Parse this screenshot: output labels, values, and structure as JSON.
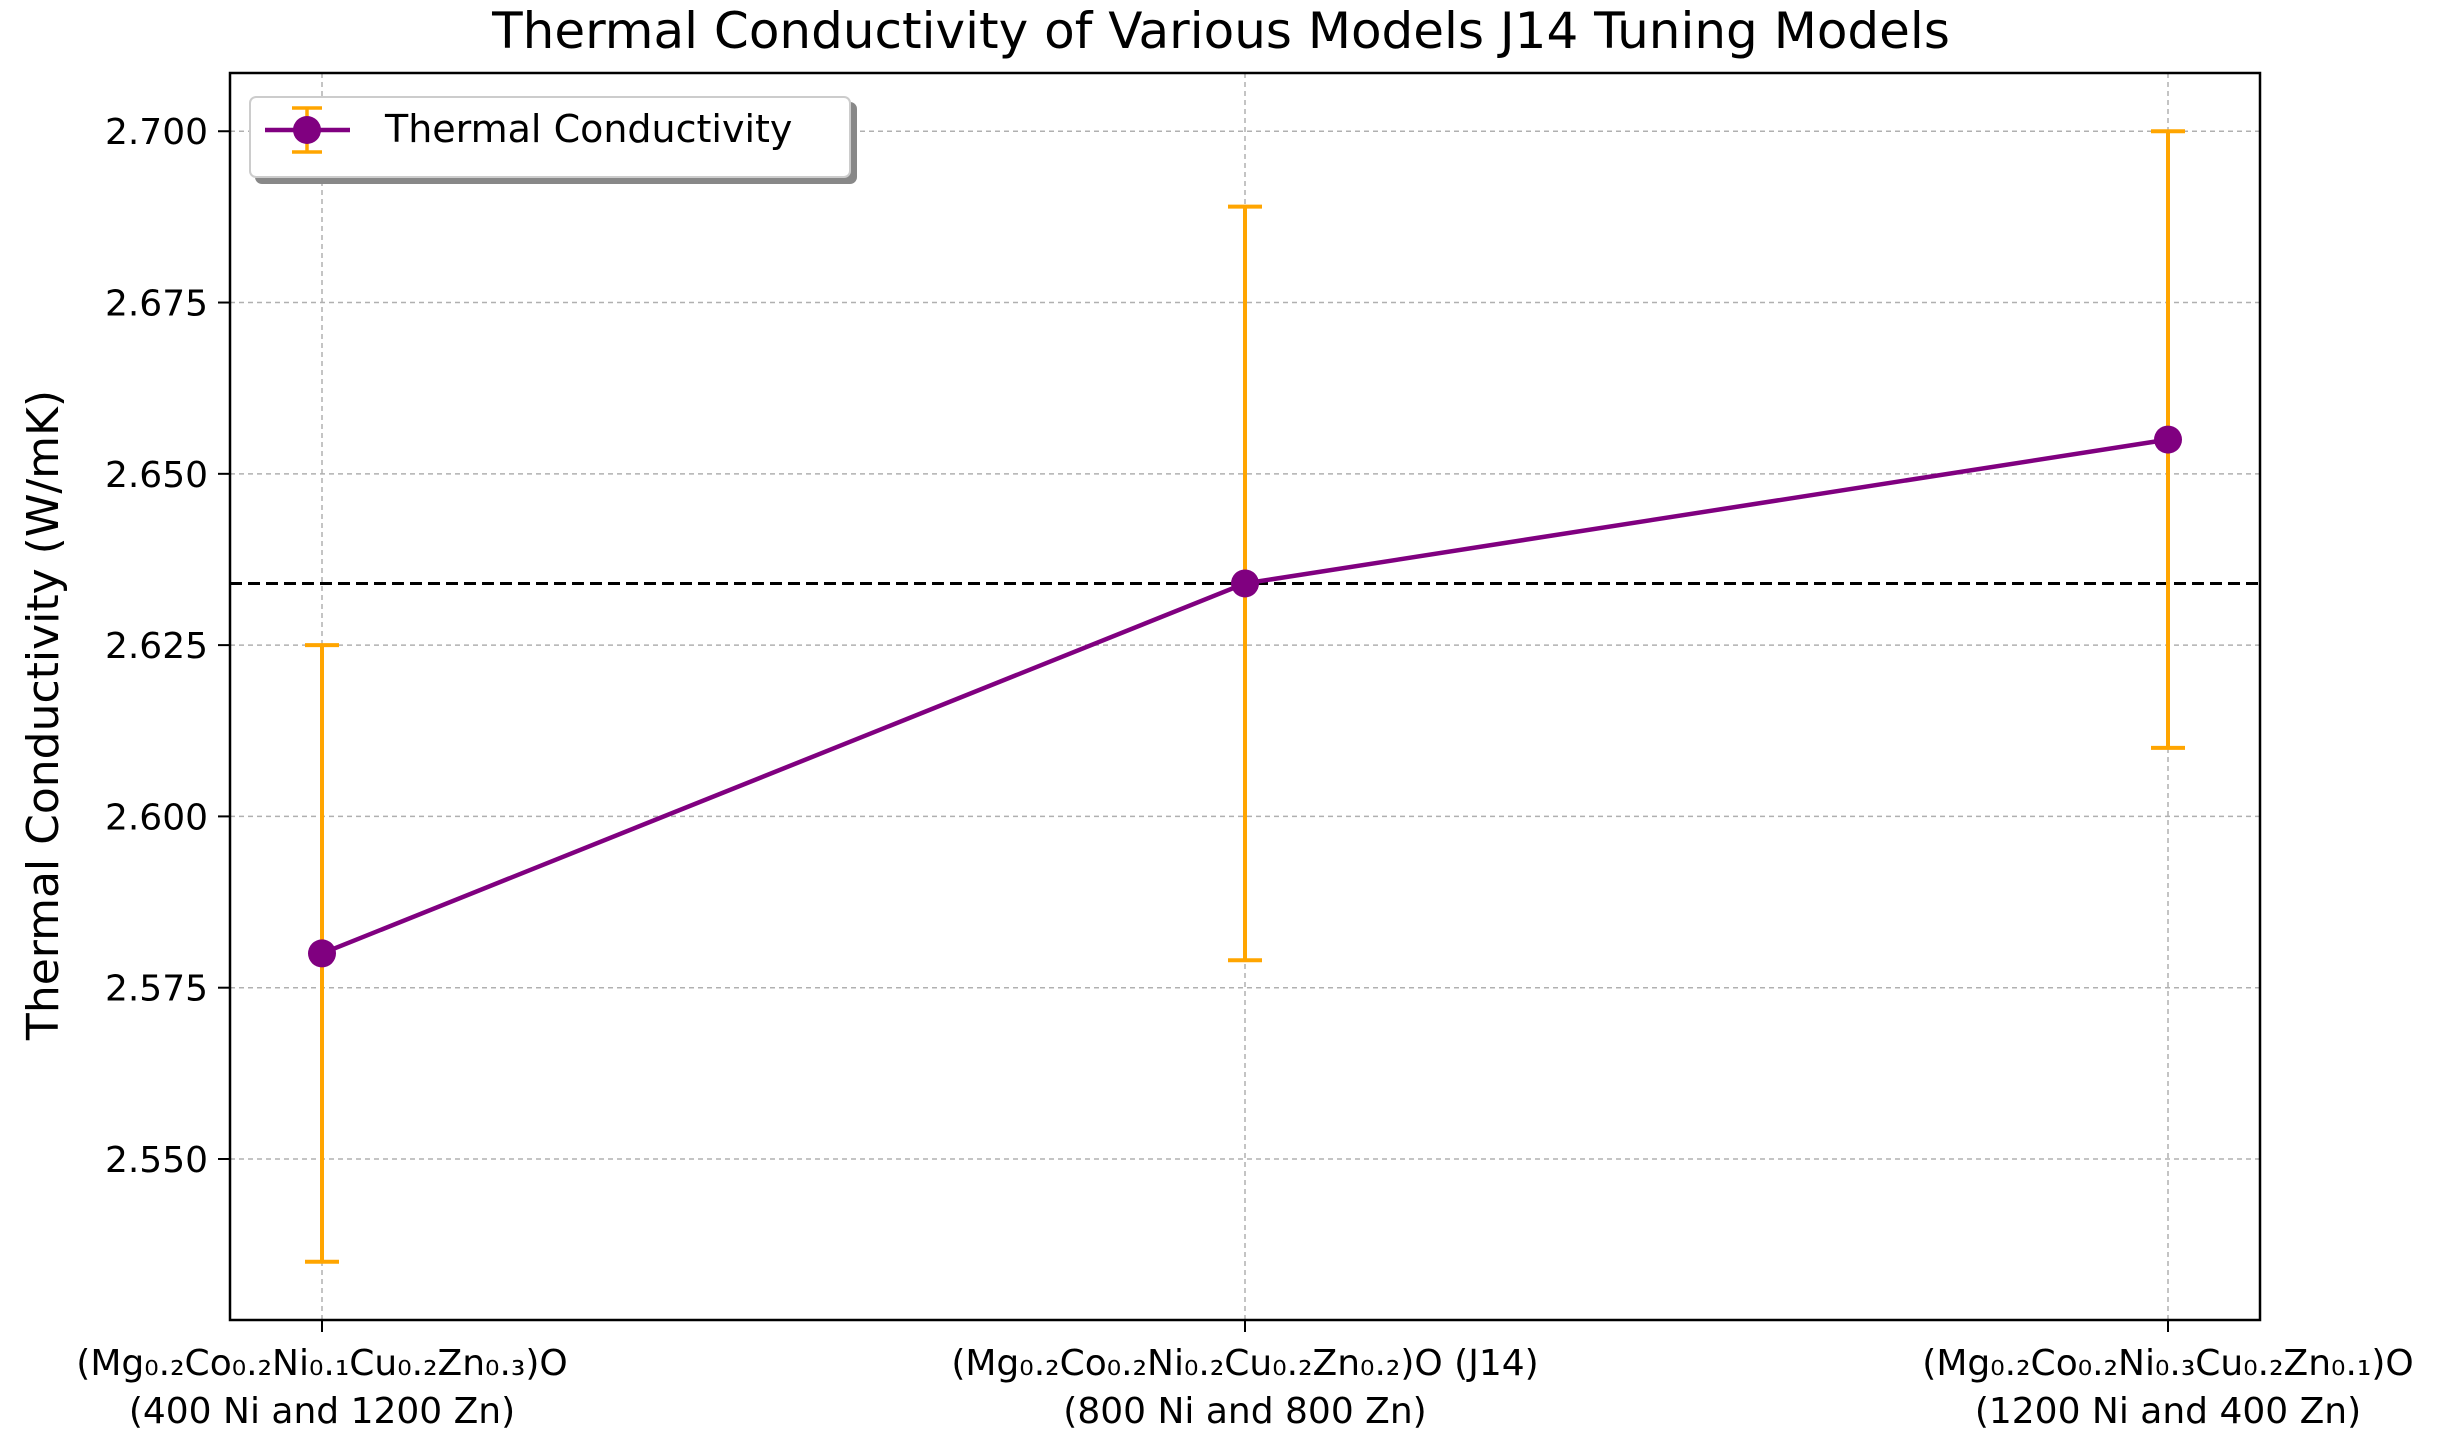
{
  "chart_data": {
    "type": "line",
    "title": "Thermal Conductivity of Various Models J14 Tuning Models",
    "xlabel": "",
    "ylabel": "Thermal Conductivity (W/mK)",
    "categories": [
      [
        "(Mg₀.₂Co₀.₂Ni₀.₁Cu₀.₂Zn₀.₃)O",
        "(400 Ni and 1200 Zn)"
      ],
      [
        "(Mg₀.₂Co₀.₂Ni₀.₂Cu₀.₂Zn₀.₂)O (J14)",
        "(800 Ni and 800 Zn)"
      ],
      [
        "(Mg₀.₂Co₀.₂Ni₀.₃Cu₀.₂Zn₀.₁)O",
        "(1200 Ni and 400 Zn)"
      ]
    ],
    "series": [
      {
        "name": "Thermal Conductivity",
        "values": [
          2.58,
          2.634,
          2.655
        ],
        "error_low": [
          2.535,
          2.579,
          2.61
        ],
        "error_high": [
          2.625,
          2.689,
          2.7
        ],
        "color": "#800080",
        "error_color": "#FFA500"
      }
    ],
    "reference_line": {
      "value": 2.634,
      "style": "dashed",
      "color": "#000000"
    },
    "ylim": [
      2.5265,
      2.7085
    ],
    "yticks": [
      2.55,
      2.575,
      2.6,
      2.625,
      2.65,
      2.675,
      2.7
    ],
    "ytick_labels": [
      "2.550",
      "2.575",
      "2.600",
      "2.625",
      "2.650",
      "2.675",
      "2.700"
    ],
    "grid": true,
    "legend": {
      "location": "top-left",
      "entries": [
        "Thermal Conductivity"
      ]
    }
  }
}
